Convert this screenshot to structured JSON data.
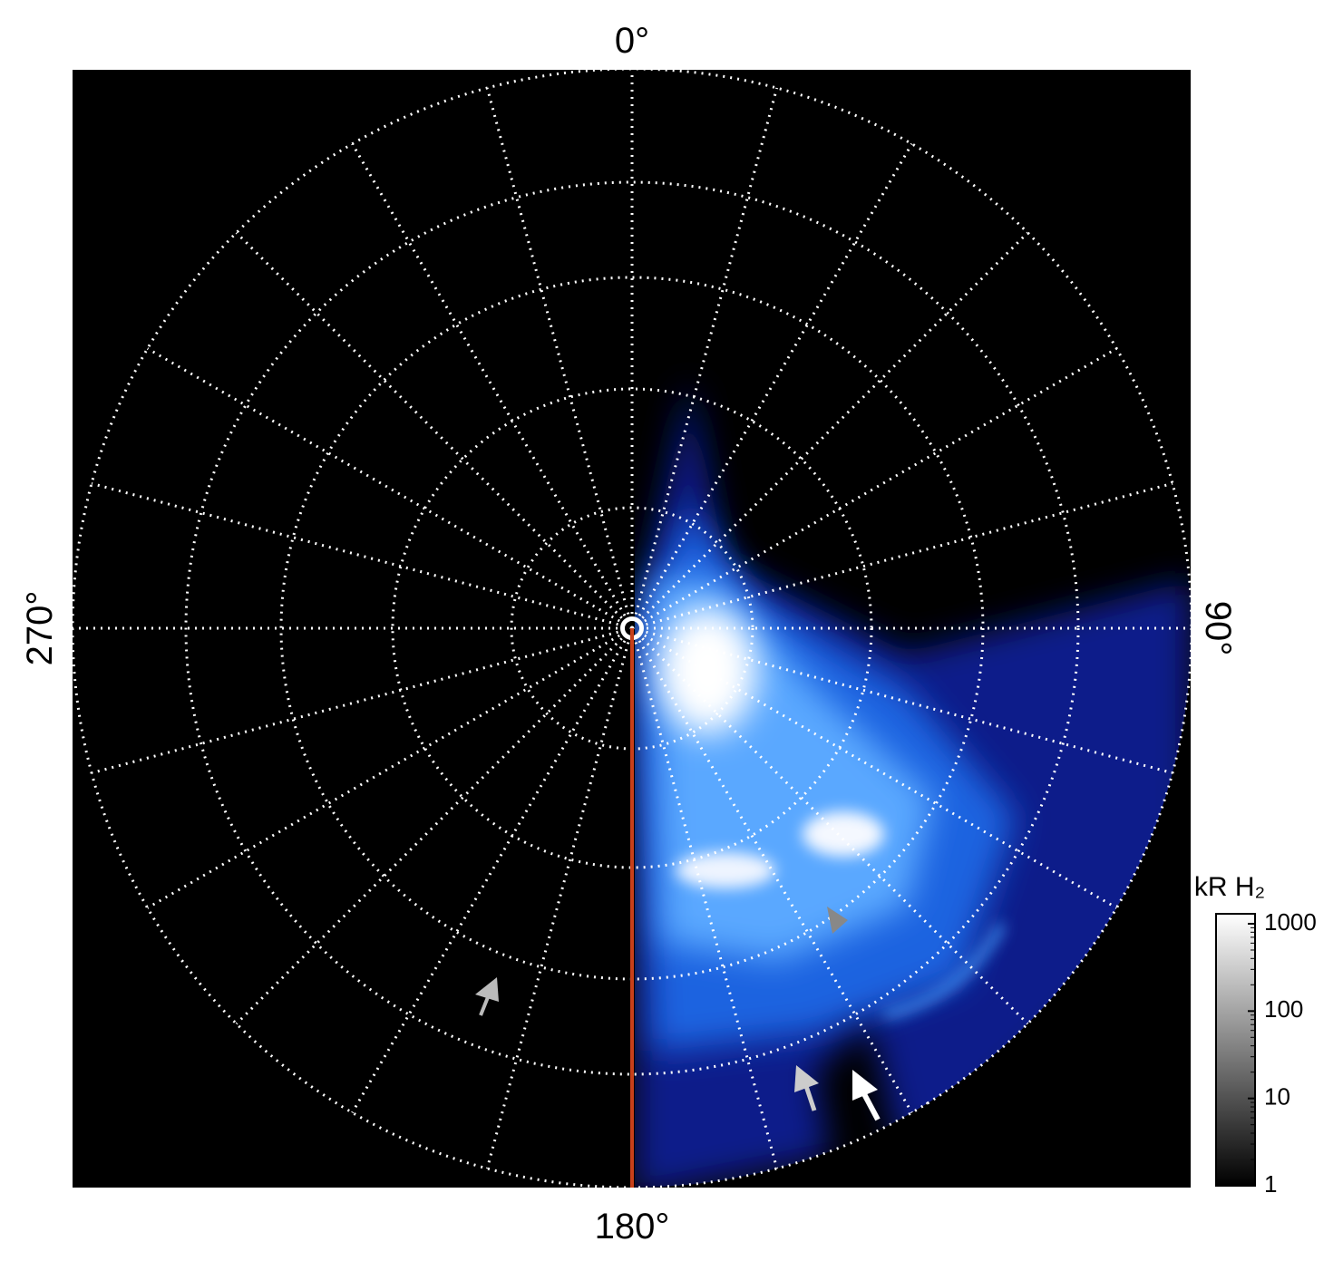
{
  "labels": {
    "top": "0°",
    "right": "90°",
    "bottom": "180°",
    "left": "270°"
  },
  "colorbar": {
    "title": "kR H₂",
    "scale": "log",
    "lim": [
      1,
      1300
    ],
    "ticks": [
      1,
      10,
      100,
      1000
    ]
  }
}
